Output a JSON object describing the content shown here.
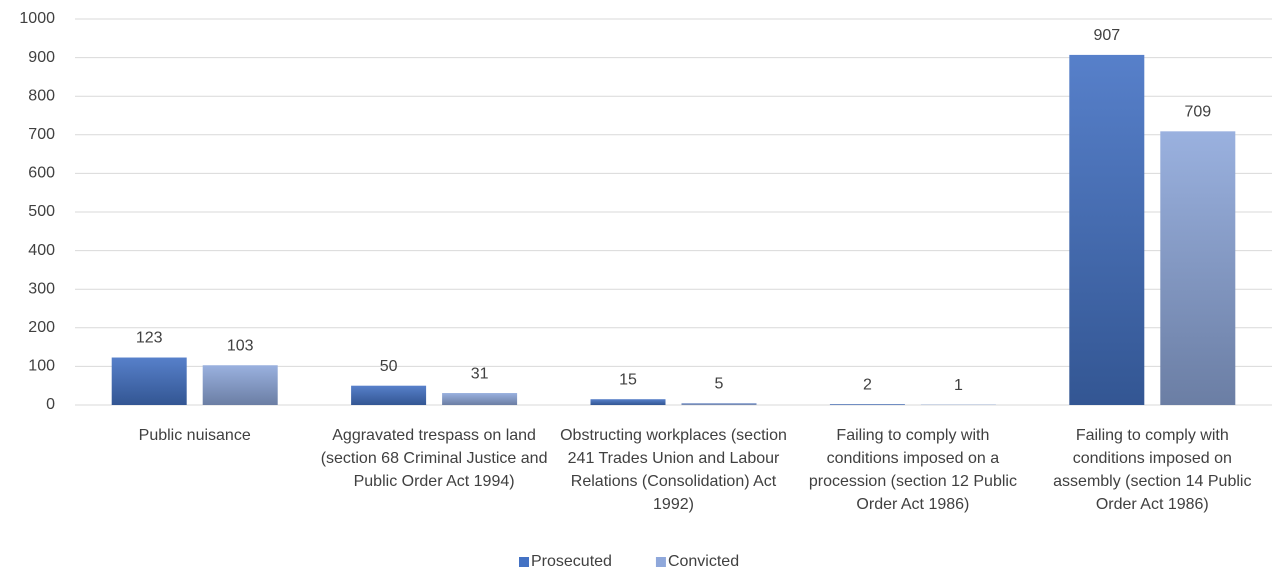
{
  "chart_data": {
    "type": "bar",
    "categories": [
      "Public nuisance",
      "Aggravated trespass on land (section 68 Criminal Justice and Public Order Act 1994)",
      "Obstructing workplaces (section 241 Trades Union and Labour Relations (Consolidation) Act 1992)",
      "Failing to comply with conditions imposed on a procession (section 12 Public Order Act 1986)",
      "Failing to comply with conditions imposed on assembly (section 14 Public Order Act 1986)"
    ],
    "series": [
      {
        "name": "Prosecuted",
        "color": "#4472c4",
        "values": [
          123,
          50,
          15,
          2,
          907
        ]
      },
      {
        "name": "Convicted",
        "color": "#8fa8db",
        "values": [
          103,
          31,
          5,
          1,
          709
        ]
      }
    ],
    "ylim": [
      0,
      1000
    ],
    "yticks": [
      0,
      100,
      200,
      300,
      400,
      500,
      600,
      700,
      800,
      900,
      1000
    ],
    "grid": true,
    "legend": "bottom"
  }
}
